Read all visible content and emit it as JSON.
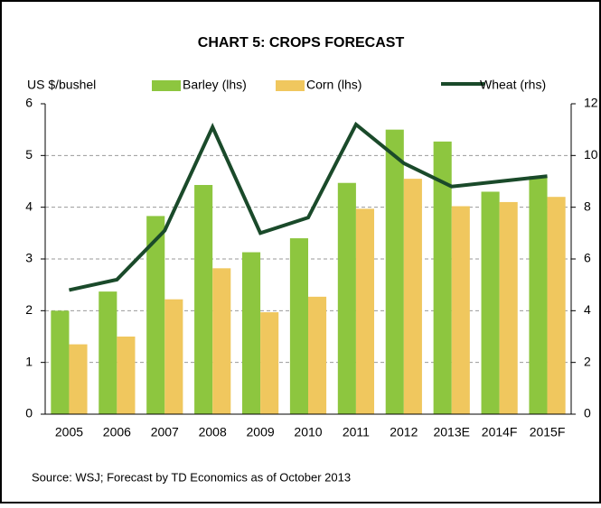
{
  "chart_data": {
    "type": "bar-line",
    "title": "CHART 5: CROPS FORECAST",
    "y_label": "US $/bushel",
    "categories": [
      "2005",
      "2006",
      "2007",
      "2008",
      "2009",
      "2010",
      "2011",
      "2012",
      "2013E",
      "2014F",
      "2015F"
    ],
    "series": [
      {
        "name": "Barley (lhs)",
        "color": "#8dc63f",
        "type": "bar",
        "values": [
          2.0,
          2.37,
          3.83,
          4.43,
          3.13,
          3.4,
          4.47,
          5.5,
          5.27,
          4.3,
          4.6
        ]
      },
      {
        "name": "Corn (lhs)",
        "color": "#f0c75e",
        "type": "bar",
        "values": [
          1.35,
          1.5,
          2.22,
          2.82,
          1.97,
          2.27,
          3.97,
          4.55,
          4.02,
          4.1,
          4.2
        ]
      },
      {
        "name": "Wheat (rhs)",
        "color": "#1a4a2a",
        "type": "line",
        "axis": "y2",
        "values": [
          4.8,
          5.2,
          7.1,
          11.1,
          7.0,
          7.6,
          11.2,
          9.7,
          8.8,
          9.0,
          9.2
        ]
      }
    ],
    "ylim": [
      0,
      6
    ],
    "yticks": [
      0,
      1,
      2,
      3,
      4,
      5,
      6
    ],
    "y2lim": [
      0,
      12
    ],
    "y2ticks": [
      0,
      2,
      4,
      6,
      8,
      10,
      12
    ],
    "grid": true,
    "source": "Source: WSJ; Forecast by TD Economics as of October 2013"
  }
}
